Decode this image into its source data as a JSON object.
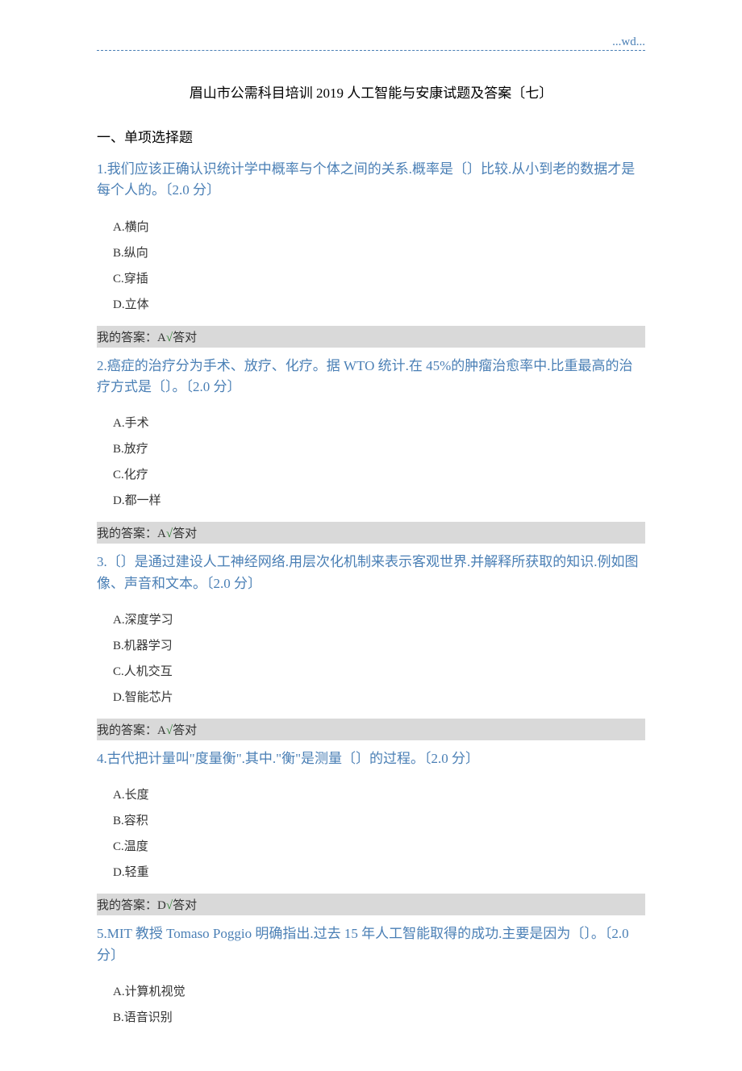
{
  "header": {
    "dashed_color": "#4a7fb5",
    "label": "...wd..."
  },
  "title": "眉山市公需科目培训 2019 人工智能与安康试题及答案〔七〕",
  "section_heading": "一、单项选择题",
  "answer_prefix": "我的答案：",
  "correct_suffix": "答对",
  "questions": [
    {
      "text": "1.我们应该正确认识统计学中概率与个体之间的关系.概率是〔〕比较.从小到老的数据才是每个人的。〔2.0 分〕",
      "options": [
        "A.横向",
        "B.纵向",
        "C.穿插",
        "D.立体"
      ],
      "answer": "A"
    },
    {
      "text": "2.癌症的治疗分为手术、放疗、化疗。据 WTO 统计.在 45%的肿瘤治愈率中.比重最高的治疗方式是〔〕。〔2.0 分〕",
      "options": [
        "A.手术",
        "B.放疗",
        "C.化疗",
        "D.都一样"
      ],
      "answer": "A"
    },
    {
      "text": "3.〔〕是通过建设人工神经网络.用层次化机制来表示客观世界.并解释所获取的知识.例如图像、声音和文本。〔2.0 分〕",
      "options": [
        "A.深度学习",
        "B.机器学习",
        "C.人机交互",
        "D.智能芯片"
      ],
      "answer": "A"
    },
    {
      "text": "4.古代把计量叫\"度量衡\".其中.\"衡\"是测量〔〕的过程。〔2.0 分〕",
      "options": [
        "A.长度",
        "B.容积",
        "C.温度",
        "D.轻重"
      ],
      "answer": "D"
    },
    {
      "text": "5.MIT 教授 Tomaso Poggio 明确指出.过去 15 年人工智能取得的成功.主要是因为〔〕。〔2.0 分〕",
      "options": [
        "A.计算机视觉",
        "B.语音识别"
      ],
      "answer": ""
    }
  ]
}
